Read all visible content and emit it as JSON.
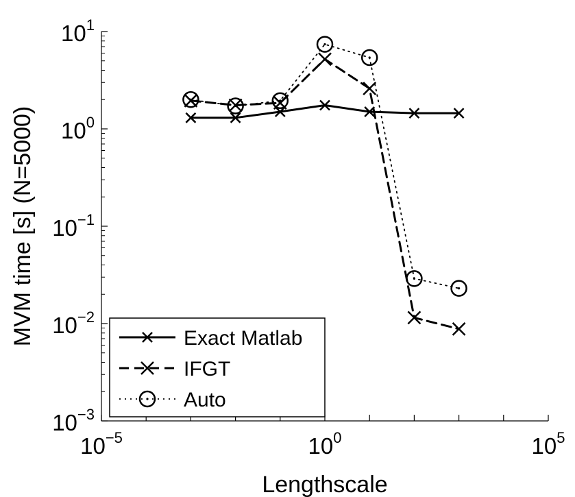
{
  "chart_data": {
    "type": "line",
    "title": "",
    "xlabel": "Lengthscale",
    "ylabel": "MVM time [s] (N=5000)",
    "xscale": "log",
    "yscale": "log",
    "xlim": [
      1e-05,
      100000
    ],
    "ylim": [
      0.001,
      10
    ],
    "grid": false,
    "legend_position": "bottom-left",
    "x_ticks": [
      {
        "value": 1e-05,
        "base": "10",
        "exp": "−5"
      },
      {
        "value": 1,
        "base": "10",
        "exp": "0"
      },
      {
        "value": 100000,
        "base": "10",
        "exp": "5"
      }
    ],
    "y_ticks": [
      {
        "value": 0.001,
        "base": "10",
        "exp": "−3"
      },
      {
        "value": 0.01,
        "base": "10",
        "exp": "−2"
      },
      {
        "value": 0.1,
        "base": "10",
        "exp": "−1"
      },
      {
        "value": 1,
        "base": "10",
        "exp": "0"
      },
      {
        "value": 10,
        "base": "10",
        "exp": "1"
      }
    ],
    "series": [
      {
        "name": "Exact Matlab",
        "style": "solid",
        "marker": "x",
        "color": "#000000",
        "x": [
          0.001,
          0.01,
          0.1,
          1,
          10,
          100,
          1000
        ],
        "y": [
          1.3,
          1.3,
          1.5,
          1.75,
          1.5,
          1.45,
          1.45
        ]
      },
      {
        "name": "IFGT",
        "style": "dashed",
        "marker": "x",
        "color": "#000000",
        "x": [
          0.001,
          0.01,
          0.1,
          1,
          10,
          100,
          1000
        ],
        "y": [
          1.95,
          1.75,
          1.85,
          5.2,
          2.6,
          0.0115,
          0.0088
        ]
      },
      {
        "name": "Auto",
        "style": "dotted",
        "marker": "o",
        "color": "#000000",
        "x": [
          0.001,
          0.01,
          0.1,
          1,
          10,
          100,
          1000
        ],
        "y": [
          2.0,
          1.72,
          1.95,
          7.4,
          5.4,
          0.029,
          0.023
        ]
      }
    ]
  }
}
